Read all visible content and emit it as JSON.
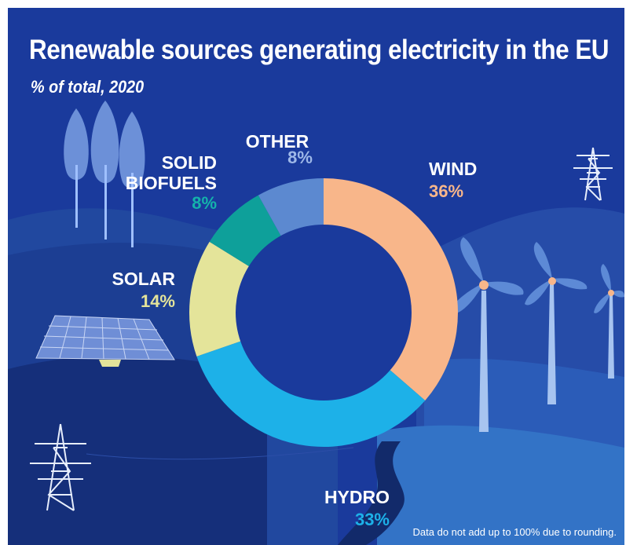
{
  "title": "Renewable sources generating electricity in the EU",
  "subtitle": "% of total, 2020",
  "note": "Data do not add up to 100% due to rounding.",
  "colors": {
    "background": "#1a3a9c",
    "wind": "#f8b68a",
    "hydro": "#1db1e8",
    "solar": "#e4e49a",
    "solid_biofuels": "#0ea09a",
    "other": "#5c89d0"
  },
  "chart_data": {
    "type": "pie",
    "title": "Renewable sources generating electricity in the EU",
    "subtitle": "% of total, 2020",
    "unit": "%",
    "slices": [
      {
        "label": "WIND",
        "value": 36,
        "value_label": "36%",
        "color": "#f8b68a",
        "label_color": "#f8b68a"
      },
      {
        "label": "HYDRO",
        "value": 33,
        "value_label": "33%",
        "color": "#1db1e8",
        "label_color": "#1db1e8"
      },
      {
        "label": "SOLAR",
        "value": 14,
        "value_label": "14%",
        "color": "#e4e49a",
        "label_color": "#e4e49a"
      },
      {
        "label": "SOLID BIOFUELS",
        "value": 8,
        "value_label": "8%",
        "color": "#0ea09a",
        "label_color": "#14b3ab"
      },
      {
        "label": "OTHER",
        "value": 8,
        "value_label": "8%",
        "color": "#5c89d0",
        "label_color": "#9eb8e8"
      }
    ],
    "annotation": "Data do not add up to 100% due to rounding."
  }
}
